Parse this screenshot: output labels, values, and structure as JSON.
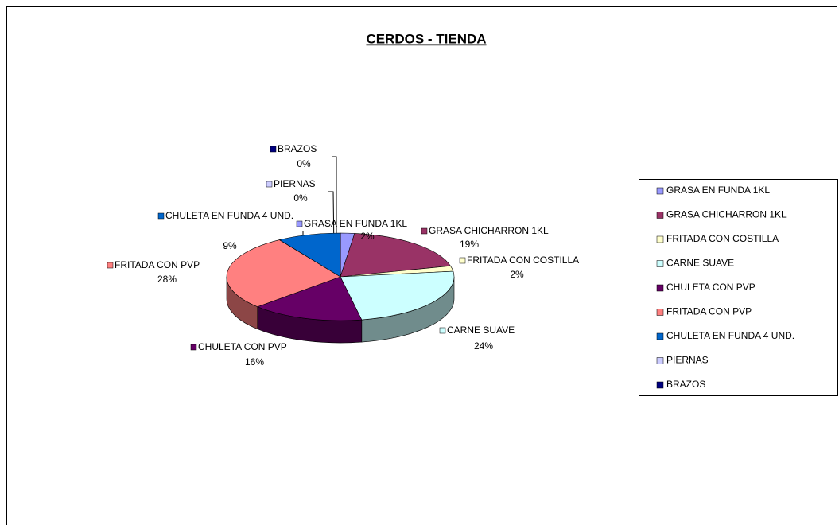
{
  "chart_data": {
    "type": "pie",
    "title": "CERDOS - TIENDA",
    "categories": [
      "GRASA EN FUNDA 1KL",
      "GRASA CHICHARRON 1KL",
      "FRITADA CON COSTILLA",
      "CARNE SUAVE",
      "CHULETA CON PVP",
      "FRITADA CON PVP",
      "CHULETA EN FUNDA 4 UND.",
      "PIERNAS",
      "BRAZOS"
    ],
    "values": [
      2,
      19,
      2,
      24,
      16,
      28,
      9,
      0,
      0
    ],
    "value_labels": [
      "2%",
      "19%",
      "2%",
      "24%",
      "16%",
      "28%",
      "9%",
      "0%",
      "0%"
    ],
    "colors": [
      "#9999ff",
      "#993366",
      "#ffffcc",
      "#ccffff",
      "#660066",
      "#ff8080",
      "#0066cc",
      "#ccccff",
      "#000080"
    ],
    "legend": "right"
  }
}
